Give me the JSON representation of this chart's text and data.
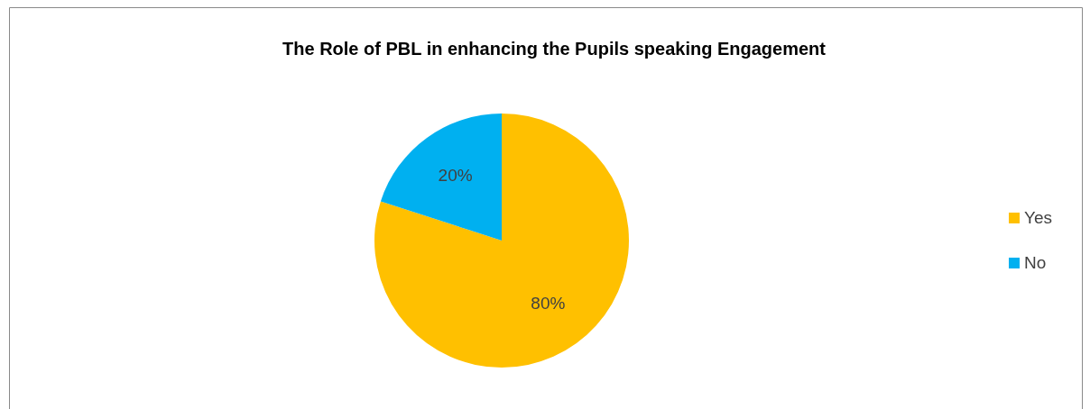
{
  "chart_data": {
    "type": "pie",
    "title": "The Role of PBL in enhancing the Pupils speaking Engagement",
    "categories": [
      "Yes",
      "No"
    ],
    "values": [
      80,
      20
    ],
    "colors": [
      "#ffc000",
      "#00b0f0"
    ],
    "value_labels": [
      "80%",
      "20%"
    ],
    "legend": "right"
  }
}
